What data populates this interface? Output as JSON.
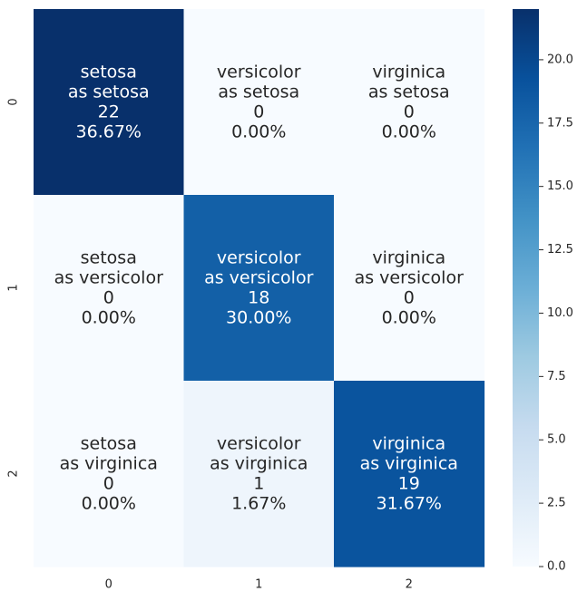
{
  "chart_data": {
    "type": "heatmap",
    "x_tick_labels": [
      "0",
      "1",
      "2"
    ],
    "y_tick_labels": [
      "0",
      "1",
      "2"
    ],
    "values": [
      [
        22,
        0,
        0
      ],
      [
        0,
        18,
        0
      ],
      [
        0,
        1,
        19
      ]
    ],
    "cell_labels": [
      [
        [
          "setosa",
          "as setosa",
          "22",
          "36.67%"
        ],
        [
          "versicolor",
          "as setosa",
          "0",
          "0.00%"
        ],
        [
          "virginica",
          "as setosa",
          "0",
          "0.00%"
        ]
      ],
      [
        [
          "setosa",
          "as versicolor",
          "0",
          "0.00%"
        ],
        [
          "versicolor",
          "as versicolor",
          "18",
          "30.00%"
        ],
        [
          "virginica",
          "as versicolor",
          "0",
          "0.00%"
        ]
      ],
      [
        [
          "setosa",
          "as virginica",
          "0",
          "0.00%"
        ],
        [
          "versicolor",
          "as virginica",
          "1",
          "1.67%"
        ],
        [
          "virginica",
          "as virginica",
          "19",
          "31.67%"
        ]
      ]
    ],
    "colormap": "Blues",
    "colormap_stops": [
      "#f7fbff",
      "#deebf7",
      "#c6dbef",
      "#9ecae1",
      "#6baed6",
      "#4292c6",
      "#2171b5",
      "#08519c",
      "#08306b"
    ],
    "vmin": 0,
    "vmax": 22,
    "colorbar_ticks": [
      "0.0",
      "2.5",
      "5.0",
      "7.5",
      "10.0",
      "12.5",
      "15.0",
      "17.5",
      "20.0"
    ],
    "legend_position": "right"
  }
}
